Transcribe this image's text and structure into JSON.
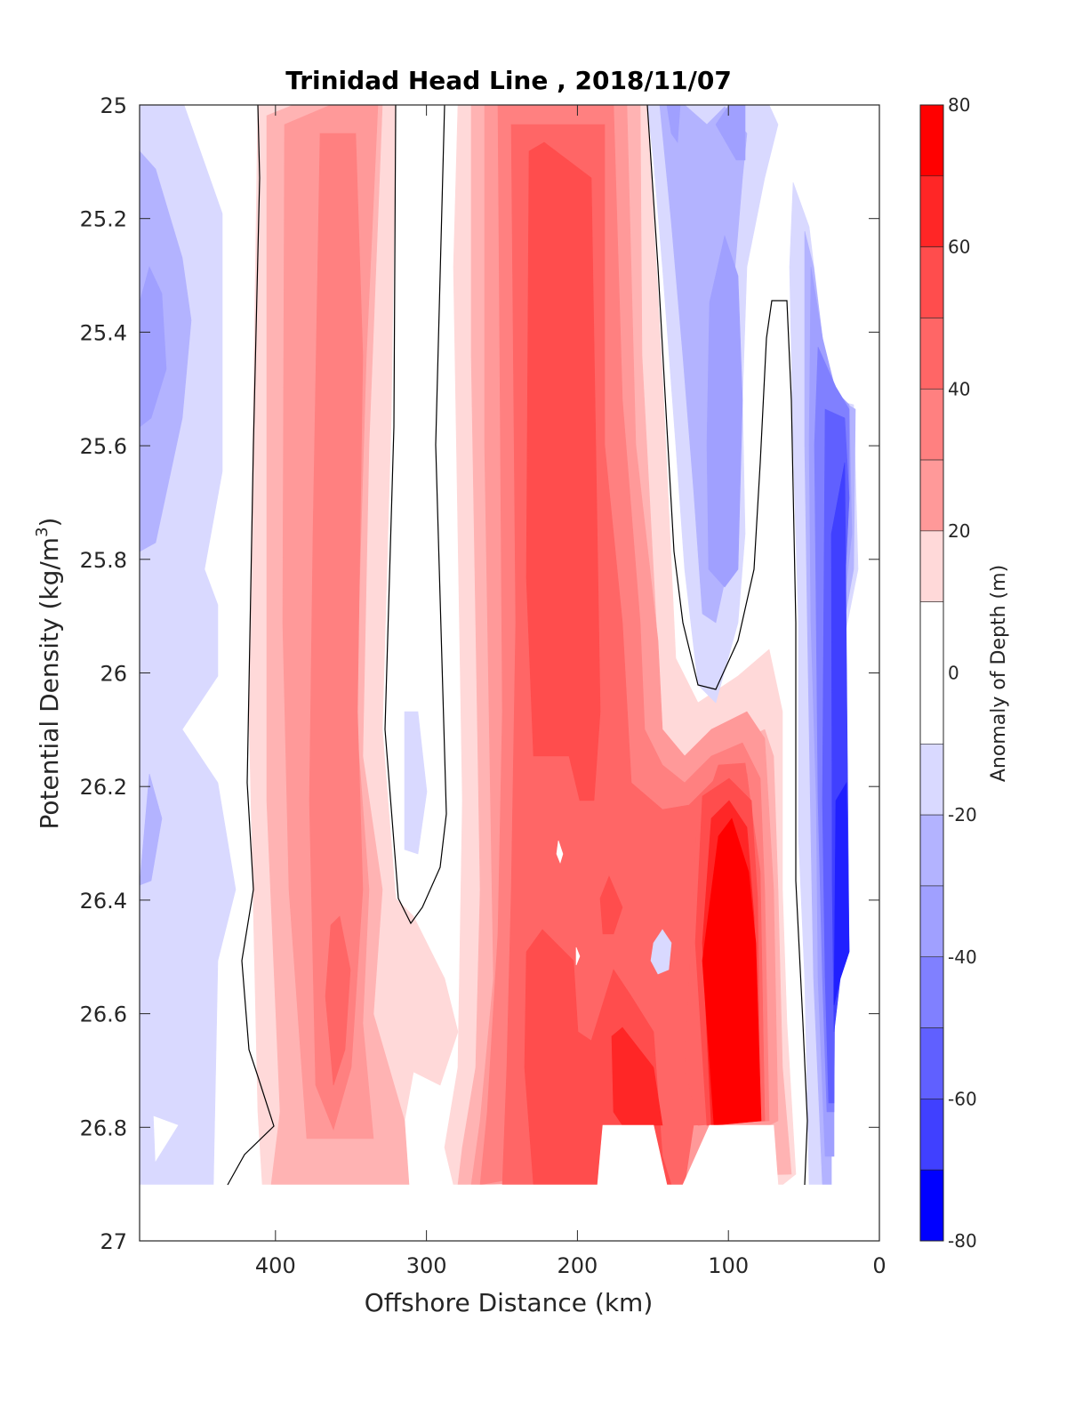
{
  "chart_data": {
    "type": "heatmap",
    "title": "Trinidad Head Line , 2018/11/07",
    "xlabel": "Offshore Distance (km)",
    "ylabel": "Potential Density (kg/m",
    "ylabel_sup": "3",
    "ylabel_close": ")",
    "colorbar_label": "Anomaly of Depth (m)",
    "xlim": [
      490,
      0
    ],
    "ylim": [
      25,
      27
    ],
    "xticks": [
      400,
      300,
      200,
      100,
      0
    ],
    "yticks": [
      25,
      25.2,
      25.4,
      25.6,
      25.8,
      26,
      26.2,
      26.4,
      26.6,
      26.8,
      27
    ],
    "ytick_labels": [
      "25",
      "25.2",
      "25.4",
      "25.6",
      "25.8",
      "26",
      "26.2",
      "26.4",
      "26.6",
      "26.8",
      "27"
    ],
    "colorbar_ticks": [
      80,
      60,
      40,
      20,
      0,
      -20,
      -40,
      -60,
      -80
    ],
    "colorbar_limits": [
      -80,
      80
    ],
    "levels": [
      -80,
      -70,
      -60,
      -50,
      -40,
      -30,
      -20,
      -10,
      10,
      20,
      30,
      40,
      50,
      60,
      70,
      80
    ],
    "colors": {
      "n80": "#0000ff",
      "n70": "#2020ff",
      "n60": "#4040ff",
      "n50": "#6060ff",
      "n40": "#8080ff",
      "n30": "#a0a0ff",
      "n20": "#b3b3ff",
      "n10": "#d9d9ff",
      "zero": "#ffffff",
      "p10": "#ffd9d9",
      "p20": "#ffb3b3",
      "p30": "#ff9999",
      "p40": "#ff8080",
      "p50": "#ff6666",
      "p60": "#ff4d4d",
      "p70": "#ff2626",
      "p80": "#ff0000"
    },
    "features": [
      {
        "kind": "negative anomaly",
        "x_km": 470,
        "density": 25.4,
        "value": -30
      },
      {
        "kind": "positive anomaly",
        "x_km": 355,
        "density": 26.6,
        "value": 40
      },
      {
        "kind": "positive anomaly",
        "x_km": 210,
        "density": 25.6,
        "value": 55
      },
      {
        "kind": "positive anomaly",
        "x_km": 95,
        "density": 26.55,
        "value": 78
      },
      {
        "kind": "negative anomaly",
        "x_km": 30,
        "density": 26.6,
        "value": -65
      }
    ]
  }
}
